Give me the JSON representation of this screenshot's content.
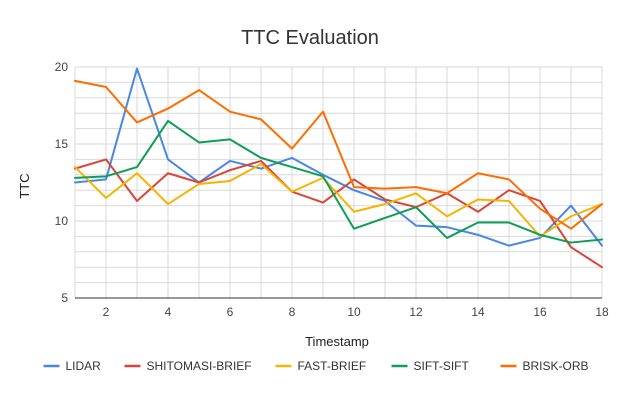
{
  "chart_data": {
    "type": "line",
    "title": "TTC Evaluation",
    "xlabel": "Timestamp",
    "ylabel": "TTC",
    "x": [
      1,
      2,
      3,
      4,
      5,
      6,
      7,
      8,
      9,
      10,
      11,
      12,
      13,
      14,
      15,
      16,
      17,
      18
    ],
    "xlim": [
      1,
      18
    ],
    "ylim": [
      5,
      20
    ],
    "x_ticks": [
      2,
      4,
      6,
      8,
      10,
      12,
      14,
      16,
      18
    ],
    "y_ticks": [
      5,
      10,
      15,
      20
    ],
    "grid": true,
    "legend_position": "bottom",
    "series": [
      {
        "name": "LIDAR",
        "color": "#4a86e8",
        "values": [
          12.5,
          12.7,
          19.9,
          14.0,
          12.5,
          13.9,
          13.4,
          14.1,
          13.0,
          12.0,
          11.3,
          9.7,
          9.6,
          9.1,
          8.4,
          8.9,
          11.0,
          8.4
        ]
      },
      {
        "name": "SHITOMASI-BRIEF",
        "color": "#db4437",
        "values": [
          13.4,
          14.0,
          11.3,
          13.1,
          12.5,
          13.3,
          13.9,
          11.9,
          11.2,
          12.7,
          11.4,
          10.9,
          11.8,
          10.6,
          12.0,
          11.3,
          8.3,
          7.0
        ]
      },
      {
        "name": "FAST-BRIEF",
        "color": "#f4b400",
        "values": [
          13.5,
          11.5,
          13.1,
          11.1,
          12.4,
          12.6,
          13.7,
          11.9,
          12.8,
          10.6,
          11.1,
          11.8,
          10.3,
          11.4,
          11.3,
          9.0,
          10.3,
          11.1
        ]
      },
      {
        "name": "SIFT-SIFT",
        "color": "#0f9d58",
        "values": [
          12.8,
          12.9,
          13.5,
          16.5,
          15.1,
          15.3,
          14.1,
          13.5,
          12.9,
          9.5,
          10.2,
          10.9,
          8.9,
          9.9,
          9.9,
          9.1,
          8.6,
          8.8
        ]
      },
      {
        "name": "BRISK-ORB",
        "color": "#ff6d01",
        "values": [
          19.1,
          18.7,
          16.4,
          17.3,
          18.5,
          17.1,
          16.6,
          14.7,
          17.1,
          12.2,
          12.1,
          12.2,
          11.8,
          13.1,
          12.7,
          10.8,
          9.5,
          11.1
        ]
      }
    ]
  }
}
